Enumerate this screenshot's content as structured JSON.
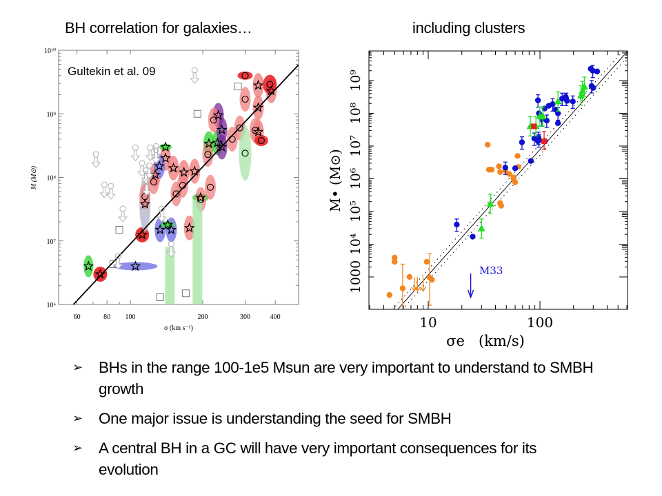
{
  "slide": {
    "title_left": "BH correlation for galaxies…",
    "title_right": "including clusters",
    "bullets": [
      {
        "marker": "➢",
        "text": "BHs in the range 100-1e5 Msun are very important to understand to SMBH growth"
      },
      {
        "marker": "➢",
        "text": "One major issue is understanding the seed for SMBH"
      },
      {
        "marker": "➢",
        "text": "A central BH in a GC will have very important consequences for its evolution"
      }
    ]
  },
  "chart_data": [
    {
      "type": "scatter",
      "title": "",
      "annotation": "Gultekin et al. 09",
      "xlabel": "σ (km s⁻¹)",
      "ylabel": "M (M⊙)",
      "xscale": "log",
      "yscale": "log",
      "xlim": [
        46,
        500
      ],
      "ylim": [
        1000000,
        10000000000
      ],
      "xticks": [
        60,
        80,
        100,
        200,
        300,
        400
      ],
      "xtick_labels": [
        "60",
        "80",
        "100",
        "200",
        "300",
        "400"
      ],
      "yticks": [
        1000000,
        10000000,
        100000000,
        1000000000,
        10000000000
      ],
      "ytick_labels": [
        "10⁶",
        "10⁷",
        "10⁸",
        "10⁹",
        "10¹⁰"
      ],
      "fit_line": {
        "x": [
          58,
          500
        ],
        "y": [
          1000000,
          5900000000
        ]
      },
      "colors": {
        "red": "#e8262a",
        "light_red": "#f08080",
        "blue": "#3b3bd6",
        "light_blue": "#7b7be8",
        "green": "#3ad63a",
        "light_green": "#a8e6a8",
        "purple": "#7a2a9a",
        "gray": "#b8bcd0",
        "upper_limit": "#b0b0b0"
      },
      "series": [
        {
          "name": "stars (dynamical, red)",
          "marker": "star",
          "color": "red",
          "points": [
            [
              75,
              3000000
            ],
            [
              112,
              12500000
            ],
            [
              127,
              110000000
            ],
            [
              140,
              200000000
            ],
            [
              151,
              140000000
            ],
            [
              167,
              120000000
            ],
            [
              185,
              125000000
            ],
            [
              340,
              2800000000
            ],
            [
              340,
              1250000000
            ],
            [
              385,
              2300000000
            ],
            [
              340,
              520000000
            ],
            [
              176,
              16000000
            ]
          ]
        },
        {
          "name": "stars (blue)",
          "marker": "star",
          "color": "blue",
          "points": [
            [
              105,
              4000000
            ],
            [
              133,
              15000000
            ],
            [
              148,
              15000000
            ],
            [
              132,
              150000000
            ],
            [
              115,
              38000000
            ]
          ]
        },
        {
          "name": "stars (green)",
          "marker": "star",
          "color": "green",
          "points": [
            [
              67,
              4000000
            ],
            [
              140,
              300000000
            ],
            [
              212,
              340000000
            ],
            [
              230,
              350000000
            ],
            [
              143,
              18000000
            ],
            [
              196,
              48000000
            ]
          ]
        },
        {
          "name": "stars (purple)",
          "marker": "star",
          "color": "purple",
          "points": [
            [
              240,
              560000000
            ],
            [
              240,
              300000000
            ],
            [
              232,
              950000000
            ]
          ]
        },
        {
          "name": "circles",
          "marker": "circle",
          "color": "red",
          "points": [
            [
              115,
              50000000
            ],
            [
              125,
              85000000
            ],
            [
              155,
              55000000
            ],
            [
              165,
              75000000
            ],
            [
              215,
              70000000
            ],
            [
              210,
              230000000
            ],
            [
              222,
              800000000
            ],
            [
              265,
              400000000
            ],
            [
              285,
              600000000
            ],
            [
              300,
              4000000000
            ],
            [
              300,
              1700000000
            ],
            [
              330,
              550000000
            ],
            [
              350,
              380000000
            ],
            [
              300,
              240000000
            ],
            [
              380,
              2900000000
            ],
            [
              196,
              45000000
            ]
          ]
        },
        {
          "name": "squares (no ellipse)",
          "marker": "square",
          "color": "gray",
          "points": [
            [
              90,
              15000000
            ],
            [
              85,
              4300000
            ],
            [
              133,
              1300000
            ],
            [
              170,
              1500000
            ],
            [
              190,
              1000000000
            ],
            [
              280,
              2700000000
            ]
          ]
        },
        {
          "name": "upper limits",
          "marker": "arrow-down",
          "color": "upper_limit",
          "points": [
            [
              72,
              180000000
            ],
            [
              78,
              60000000
            ],
            [
              83,
              57000000
            ],
            [
              93,
              25000000
            ],
            [
              89,
              4500000
            ],
            [
              105,
              230000000
            ],
            [
              112,
              130000000
            ],
            [
              116,
              100000000
            ],
            [
              117,
              65000000
            ],
            [
              121,
              230000000
            ],
            [
              128,
              240000000
            ],
            [
              135,
              25000000
            ],
            [
              148,
              7000000
            ],
            [
              185,
              3800000000
            ],
            [
              120,
              120000000
            ],
            [
              128,
              210000000
            ]
          ]
        }
      ]
    },
    {
      "type": "scatter",
      "title": "",
      "xlabel": "σe   (km/s)",
      "ylabel": "M• (M⊙)",
      "xscale": "log",
      "yscale": "log",
      "xlim": [
        2.94,
        608
      ],
      "ylim": [
        100,
        8000000000
      ],
      "xticks": [
        10,
        100
      ],
      "xtick_labels": [
        "10",
        "100"
      ],
      "yticks": [
        1000,
        10000,
        100000,
        1000000,
        10000000,
        100000000,
        1000000000
      ],
      "ytick_labels": [
        "1000",
        "10⁴",
        "10⁵",
        "10⁶",
        "10⁷",
        "10⁸",
        "10⁹"
      ],
      "annotation": "M33",
      "fit_line": {
        "x": [
          5.3,
          600
        ],
        "y": [
          100,
          7500000000
        ]
      },
      "colors": {
        "clusters": "#f5861f",
        "galaxies": "#1010d0",
        "green": "#22e022",
        "red": "#e82020",
        "dotted": "#000000"
      },
      "series": [
        {
          "name": "globular clusters / nuclear clusters",
          "marker": "circle",
          "color": "clusters",
          "points": [
            [
              4.5,
              280
            ],
            [
              5,
              3900
            ],
            [
              5,
              2900
            ],
            [
              5.9,
              450
            ],
            [
              6.8,
              1000
            ],
            [
              9.7,
              2900
            ],
            [
              10.3,
              950
            ],
            [
              10.8,
              820
            ],
            [
              35,
              1900000
            ],
            [
              37,
              1900000
            ],
            [
              43,
              2400000
            ],
            [
              44,
              1600000
            ],
            [
              49,
              1800000
            ],
            [
              53,
              1400000
            ],
            [
              58,
              1100000
            ],
            [
              60,
              780000
            ],
            [
              58,
              1000000
            ],
            [
              44,
              180000
            ],
            [
              45,
              150000
            ],
            [
              34,
              11000000
            ],
            [
              63,
              5000000
            ],
            [
              64,
              2300000
            ]
          ]
        },
        {
          "name": "cluster upper limits",
          "marker": "arrow-down",
          "color": "clusters",
          "points": [
            [
              7.5,
              500
            ],
            [
              8,
              500
            ],
            [
              9,
              500
            ]
          ]
        },
        {
          "name": "galaxies",
          "marker": "circle",
          "color": "galaxies",
          "points": [
            [
              18,
              40000
            ],
            [
              25,
              17000
            ],
            [
              49,
              2200000
            ],
            [
              60,
              2100000
            ],
            [
              69,
              13000000
            ],
            [
              83,
              3500000
            ],
            [
              89,
              17000000
            ],
            [
              96,
              14000000
            ],
            [
              98,
              15000000
            ],
            [
              111,
              14000000
            ],
            [
              97,
              18000000
            ],
            [
              98,
              100000000
            ],
            [
              104,
              65000000
            ],
            [
              110,
              140000000
            ],
            [
              115,
              60000000
            ],
            [
              120,
              170000000
            ],
            [
              130,
              190000000
            ],
            [
              138,
              130000000
            ],
            [
              145,
              100000000
            ],
            [
              145,
              50000000
            ],
            [
              158,
              280000000
            ],
            [
              170,
              320000000
            ],
            [
              172,
              280000000
            ],
            [
              175,
              240000000
            ],
            [
              197,
              230000000
            ],
            [
              285,
              2300000000
            ],
            [
              297,
              2000000000
            ],
            [
              325,
              1900000000
            ],
            [
              290,
              680000000
            ],
            [
              300,
              600000000
            ],
            [
              96,
              250000000
            ]
          ]
        },
        {
          "name": "green triangles",
          "marker": "triangle",
          "color": "green",
          "points": [
            [
              30,
              30000
            ],
            [
              36,
              170000
            ],
            [
              82,
              40000000
            ],
            [
              92,
              40000000
            ],
            [
              100,
              80000000
            ],
            [
              106,
              80000000
            ],
            [
              145,
              230000000
            ],
            [
              233,
              350000000
            ],
            [
              240,
              480000000
            ],
            [
              250,
              650000000
            ]
          ]
        },
        {
          "name": "red squares",
          "marker": "square",
          "color": "red",
          "points": [
            [
              88,
              40000000
            ],
            [
              109,
              14000000
            ]
          ]
        },
        {
          "name": "M33 upper limit",
          "marker": "arrow-down",
          "color": "galaxies",
          "points": [
            [
              24,
              400
            ]
          ]
        }
      ]
    }
  ]
}
